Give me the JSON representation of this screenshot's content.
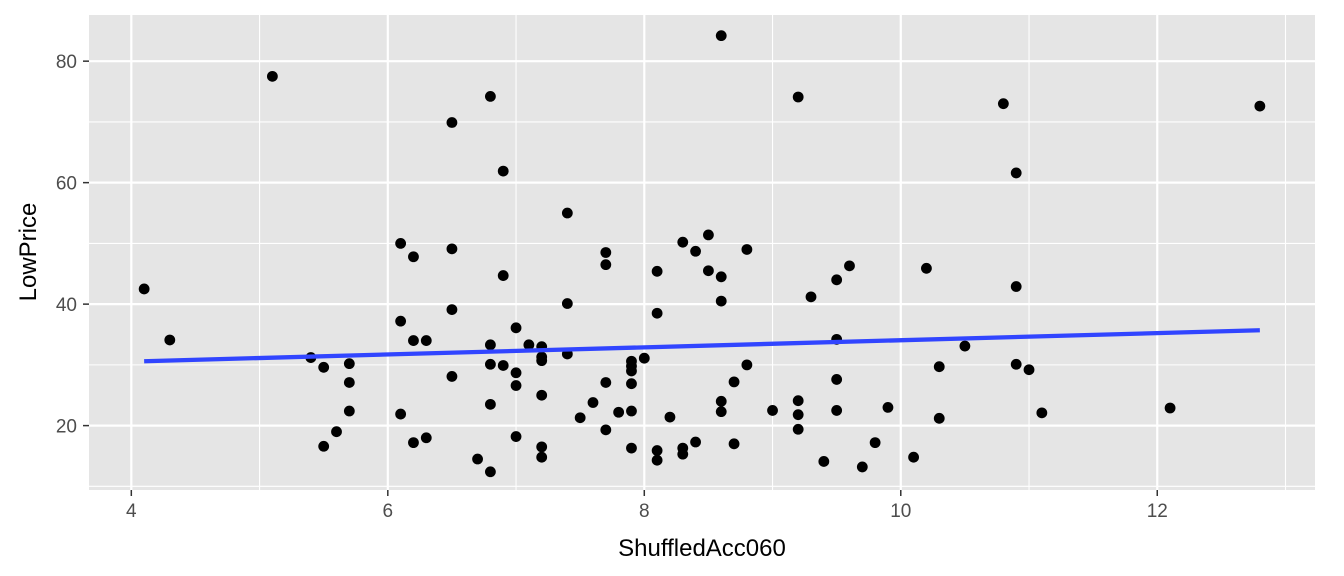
{
  "chart_data": {
    "type": "scatter",
    "title": "",
    "xlabel": "ShuffledAcc060",
    "ylabel": "LowPrice",
    "xlim": [
      3.67,
      13.23
    ],
    "ylim": [
      9.4,
      87.6
    ],
    "x_ticks": [
      4,
      6,
      8,
      10,
      12
    ],
    "y_ticks": [
      20,
      40,
      60,
      80
    ],
    "x_tick_labels": [
      "4",
      "6",
      "8",
      "10",
      "12"
    ],
    "y_tick_labels": [
      "20",
      "40",
      "60",
      "80"
    ],
    "grid": true,
    "panel_background": "#e5e5e5",
    "grid_color": "#ffffff",
    "point_color": "#000000",
    "trend_line": {
      "method": "linear",
      "x": [
        4.1,
        12.8
      ],
      "y": [
        30.6,
        35.7
      ],
      "color": "#3145ff"
    },
    "points": [
      {
        "x": 4.1,
        "y": 42.5
      },
      {
        "x": 4.3,
        "y": 34.1
      },
      {
        "x": 5.1,
        "y": 77.5
      },
      {
        "x": 5.4,
        "y": 31.2
      },
      {
        "x": 5.5,
        "y": 29.6
      },
      {
        "x": 5.5,
        "y": 16.6
      },
      {
        "x": 5.6,
        "y": 19.0
      },
      {
        "x": 5.7,
        "y": 30.2
      },
      {
        "x": 5.7,
        "y": 27.1
      },
      {
        "x": 5.7,
        "y": 22.4
      },
      {
        "x": 6.1,
        "y": 50.0
      },
      {
        "x": 6.1,
        "y": 37.2
      },
      {
        "x": 6.1,
        "y": 21.9
      },
      {
        "x": 6.2,
        "y": 47.8
      },
      {
        "x": 6.2,
        "y": 34.0
      },
      {
        "x": 6.2,
        "y": 17.2
      },
      {
        "x": 6.3,
        "y": 34.0
      },
      {
        "x": 6.3,
        "y": 18.0
      },
      {
        "x": 6.5,
        "y": 69.9
      },
      {
        "x": 6.5,
        "y": 49.1
      },
      {
        "x": 6.5,
        "y": 39.1
      },
      {
        "x": 6.5,
        "y": 28.1
      },
      {
        "x": 6.7,
        "y": 14.5
      },
      {
        "x": 6.8,
        "y": 74.2
      },
      {
        "x": 6.8,
        "y": 33.3
      },
      {
        "x": 6.8,
        "y": 30.1
      },
      {
        "x": 6.8,
        "y": 23.5
      },
      {
        "x": 6.8,
        "y": 12.4
      },
      {
        "x": 6.9,
        "y": 61.9
      },
      {
        "x": 6.9,
        "y": 44.7
      },
      {
        "x": 6.9,
        "y": 29.9
      },
      {
        "x": 7.0,
        "y": 36.1
      },
      {
        "x": 7.0,
        "y": 28.7
      },
      {
        "x": 7.0,
        "y": 26.6
      },
      {
        "x": 7.0,
        "y": 18.2
      },
      {
        "x": 7.1,
        "y": 33.3
      },
      {
        "x": 7.2,
        "y": 33.0
      },
      {
        "x": 7.2,
        "y": 31.3
      },
      {
        "x": 7.2,
        "y": 30.7
      },
      {
        "x": 7.2,
        "y": 25.0
      },
      {
        "x": 7.2,
        "y": 16.5
      },
      {
        "x": 7.2,
        "y": 14.8
      },
      {
        "x": 7.4,
        "y": 55.0
      },
      {
        "x": 7.4,
        "y": 40.1
      },
      {
        "x": 7.4,
        "y": 31.8
      },
      {
        "x": 7.5,
        "y": 21.3
      },
      {
        "x": 7.6,
        "y": 23.8
      },
      {
        "x": 7.7,
        "y": 48.5
      },
      {
        "x": 7.7,
        "y": 46.5
      },
      {
        "x": 7.7,
        "y": 27.1
      },
      {
        "x": 7.7,
        "y": 19.3
      },
      {
        "x": 7.8,
        "y": 22.2
      },
      {
        "x": 7.9,
        "y": 30.6
      },
      {
        "x": 7.9,
        "y": 29.8
      },
      {
        "x": 7.9,
        "y": 29.0
      },
      {
        "x": 7.9,
        "y": 26.9
      },
      {
        "x": 7.9,
        "y": 22.4
      },
      {
        "x": 7.9,
        "y": 16.3
      },
      {
        "x": 8.0,
        "y": 31.1
      },
      {
        "x": 8.1,
        "y": 45.4
      },
      {
        "x": 8.1,
        "y": 38.5
      },
      {
        "x": 8.1,
        "y": 15.9
      },
      {
        "x": 8.1,
        "y": 14.3
      },
      {
        "x": 8.2,
        "y": 21.4
      },
      {
        "x": 8.3,
        "y": 50.2
      },
      {
        "x": 8.3,
        "y": 16.3
      },
      {
        "x": 8.3,
        "y": 15.3
      },
      {
        "x": 8.4,
        "y": 48.7
      },
      {
        "x": 8.4,
        "y": 17.3
      },
      {
        "x": 8.5,
        "y": 51.4
      },
      {
        "x": 8.5,
        "y": 45.5
      },
      {
        "x": 8.6,
        "y": 84.2
      },
      {
        "x": 8.6,
        "y": 44.5
      },
      {
        "x": 8.6,
        "y": 40.5
      },
      {
        "x": 8.6,
        "y": 24.0
      },
      {
        "x": 8.6,
        "y": 22.3
      },
      {
        "x": 8.7,
        "y": 27.2
      },
      {
        "x": 8.7,
        "y": 17.0
      },
      {
        "x": 8.8,
        "y": 49.0
      },
      {
        "x": 8.8,
        "y": 30.0
      },
      {
        "x": 9.0,
        "y": 22.5
      },
      {
        "x": 9.2,
        "y": 74.1
      },
      {
        "x": 9.2,
        "y": 24.1
      },
      {
        "x": 9.2,
        "y": 21.8
      },
      {
        "x": 9.2,
        "y": 19.4
      },
      {
        "x": 9.3,
        "y": 41.2
      },
      {
        "x": 9.4,
        "y": 14.1
      },
      {
        "x": 9.5,
        "y": 44.0
      },
      {
        "x": 9.5,
        "y": 34.2
      },
      {
        "x": 9.5,
        "y": 27.6
      },
      {
        "x": 9.5,
        "y": 22.5
      },
      {
        "x": 9.6,
        "y": 46.3
      },
      {
        "x": 9.7,
        "y": 13.2
      },
      {
        "x": 9.8,
        "y": 17.2
      },
      {
        "x": 9.9,
        "y": 23.0
      },
      {
        "x": 10.1,
        "y": 14.8
      },
      {
        "x": 10.2,
        "y": 45.9
      },
      {
        "x": 10.3,
        "y": 29.7
      },
      {
        "x": 10.3,
        "y": 21.2
      },
      {
        "x": 10.5,
        "y": 33.1
      },
      {
        "x": 10.8,
        "y": 73.0
      },
      {
        "x": 10.9,
        "y": 61.6
      },
      {
        "x": 10.9,
        "y": 42.9
      },
      {
        "x": 10.9,
        "y": 30.1
      },
      {
        "x": 11.0,
        "y": 29.2
      },
      {
        "x": 11.1,
        "y": 22.1
      },
      {
        "x": 12.1,
        "y": 22.9
      },
      {
        "x": 12.8,
        "y": 72.6
      }
    ]
  }
}
